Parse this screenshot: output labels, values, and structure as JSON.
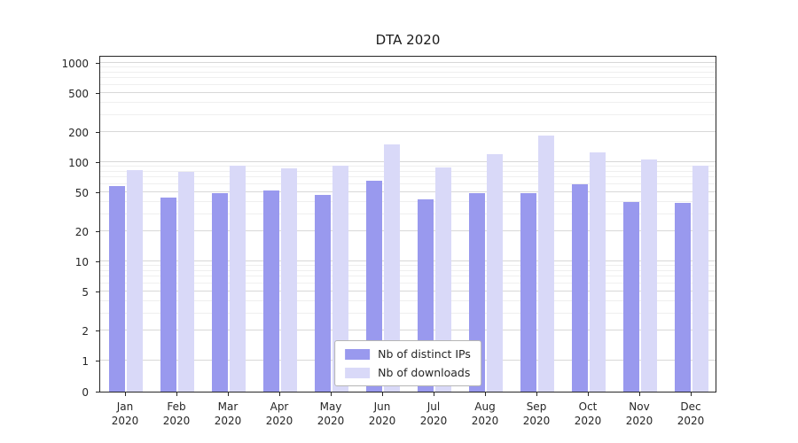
{
  "chart_data": {
    "type": "bar",
    "title": "DTA 2020",
    "scale": "symlog",
    "grid": true,
    "legend_position": "lower center",
    "categories": [
      "Jan 2020",
      "Feb 2020",
      "Mar 2020",
      "Apr 2020",
      "May 2020",
      "Jun 2020",
      "Jul 2020",
      "Aug 2020",
      "Sep 2020",
      "Oct 2020",
      "Nov 2020",
      "Dec 2020"
    ],
    "y_ticks": [
      0,
      1,
      2,
      5,
      10,
      20,
      50,
      100,
      200,
      500,
      1000
    ],
    "ylim": [
      0,
      1000
    ],
    "series": [
      {
        "name": "Nb of distinct IPs",
        "color": "#9999ee",
        "values": [
          57,
          44,
          49,
          52,
          47,
          65,
          42,
          49,
          49,
          60,
          40,
          39
        ]
      },
      {
        "name": "Nb of downloads",
        "color": "#d9d9f8",
        "values": [
          83,
          79,
          93,
          86,
          93,
          150,
          88,
          120,
          185,
          125,
          107,
          93
        ]
      }
    ]
  }
}
